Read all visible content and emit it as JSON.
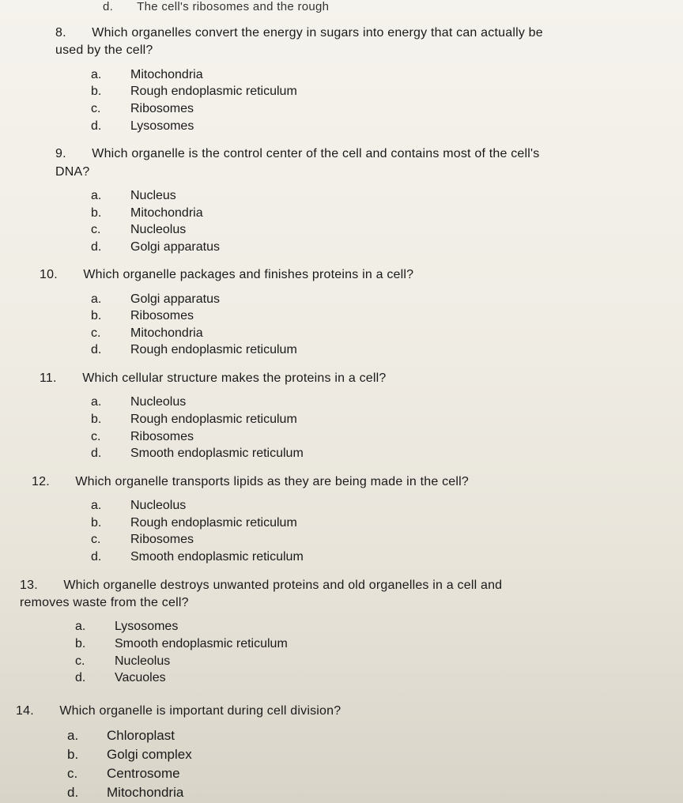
{
  "partial_top": "The cell's ribosomes and the rough",
  "questions": [
    {
      "num": "8.",
      "text_line1": "Which organelles convert the energy in sugars into energy that can actually be",
      "text_line2": "used by the cell?",
      "options": [
        {
          "letter": "a.",
          "text": "Mitochondria"
        },
        {
          "letter": "b.",
          "text": "Rough endoplasmic reticulum"
        },
        {
          "letter": "c.",
          "text": "Ribosomes"
        },
        {
          "letter": "d.",
          "text": "Lysosomes"
        }
      ]
    },
    {
      "num": "9.",
      "text_line1": "Which organelle is the control center of the cell and contains most of the cell's",
      "text_line2": "DNA?",
      "options": [
        {
          "letter": "a.",
          "text": "Nucleus"
        },
        {
          "letter": "b.",
          "text": "Mitochondria"
        },
        {
          "letter": "c.",
          "text": "Nucleolus"
        },
        {
          "letter": "d.",
          "text": "Golgi apparatus"
        }
      ]
    },
    {
      "num": "10.",
      "text_line1": "Which organelle packages and finishes proteins in a cell?",
      "text_line2": "",
      "options": [
        {
          "letter": "a.",
          "text": "Golgi apparatus"
        },
        {
          "letter": "b.",
          "text": "Ribosomes"
        },
        {
          "letter": "c.",
          "text": "Mitochondria"
        },
        {
          "letter": "d.",
          "text": "Rough endoplasmic reticulum"
        }
      ]
    },
    {
      "num": "11.",
      "text_line1": "Which cellular structure makes the proteins in a cell?",
      "text_line2": "",
      "options": [
        {
          "letter": "a.",
          "text": "Nucleolus"
        },
        {
          "letter": "b.",
          "text": "Rough endoplasmic reticulum"
        },
        {
          "letter": "c.",
          "text": "Ribosomes"
        },
        {
          "letter": "d.",
          "text": "Smooth endoplasmic reticulum"
        }
      ]
    },
    {
      "num": "12.",
      "text_line1": "Which organelle transports lipids as they are being made in the cell?",
      "text_line2": "",
      "options": [
        {
          "letter": "a.",
          "text": "Nucleolus"
        },
        {
          "letter": "b.",
          "text": "Rough endoplasmic reticulum"
        },
        {
          "letter": "c.",
          "text": "Ribosomes"
        },
        {
          "letter": "d.",
          "text": "Smooth endoplasmic reticulum"
        }
      ]
    },
    {
      "num": "13.",
      "text_line1": "Which organelle destroys unwanted proteins and old organelles in a cell and",
      "text_line2": "removes waste from the cell?",
      "options": [
        {
          "letter": "a.",
          "text": "Lysosomes"
        },
        {
          "letter": "b.",
          "text": "Smooth endoplasmic reticulum"
        },
        {
          "letter": "c.",
          "text": "Nucleolus"
        },
        {
          "letter": "d.",
          "text": "Vacuoles"
        }
      ]
    },
    {
      "num": "14.",
      "text_line1": "Which organelle is important during cell division?",
      "text_line2": "",
      "options": [
        {
          "letter": "a.",
          "text": "Chloroplast"
        },
        {
          "letter": "b.",
          "text": "Golgi complex"
        },
        {
          "letter": "c.",
          "text": "Centrosome"
        },
        {
          "letter": "d.",
          "text": "Mitochondria"
        }
      ]
    }
  ]
}
